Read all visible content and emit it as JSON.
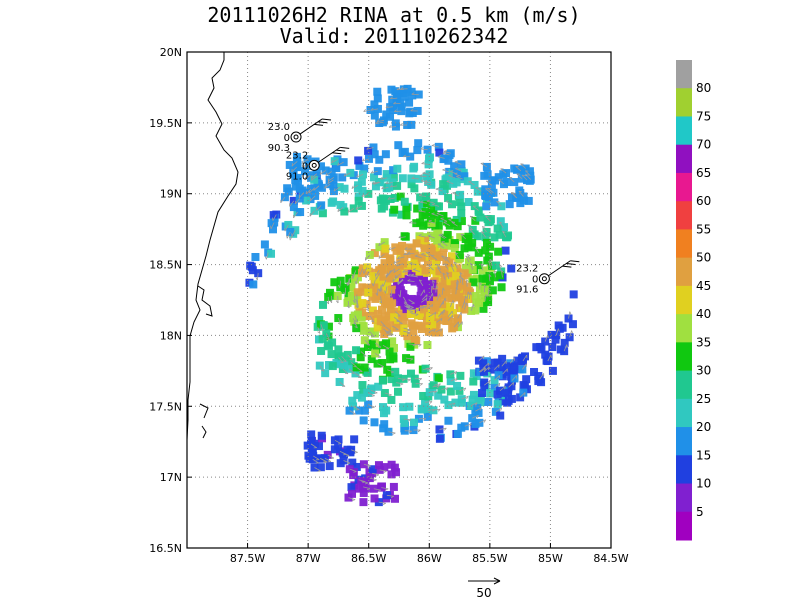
{
  "title": {
    "line1": "20111026H2 RINA at 0.5 km (m/s)",
    "line2": "Valid: 201110262342"
  },
  "map": {
    "lon_range": [
      -88.0,
      -84.5
    ],
    "lat_range": [
      16.5,
      20.0
    ],
    "lon_ticks": [
      {
        "value": -87.5,
        "label": "87.5W"
      },
      {
        "value": -87.0,
        "label": "87W"
      },
      {
        "value": -86.5,
        "label": "86.5W"
      },
      {
        "value": -86.0,
        "label": "86W"
      },
      {
        "value": -85.5,
        "label": "85.5W"
      },
      {
        "value": -85.0,
        "label": "85W"
      },
      {
        "value": -84.5,
        "label": "84.5W"
      }
    ],
    "lat_ticks": [
      {
        "value": 20.0,
        "label": "20N"
      },
      {
        "value": 19.5,
        "label": "19.5N"
      },
      {
        "value": 19.0,
        "label": "19N"
      },
      {
        "value": 18.5,
        "label": "18.5N"
      },
      {
        "value": 18.0,
        "label": "18N"
      },
      {
        "value": 17.5,
        "label": "17.5N"
      },
      {
        "value": 17.0,
        "label": "17N"
      },
      {
        "value": 16.5,
        "label": "16.5N"
      }
    ],
    "grid": "dotted"
  },
  "colorbar": {
    "levels": [
      {
        "label": "",
        "color": "#a0a0a0"
      },
      {
        "label": "80",
        "color": "#a0d030"
      },
      {
        "label": "75",
        "color": "#20c8c8"
      },
      {
        "label": "70",
        "color": "#9010c0"
      },
      {
        "label": "65",
        "color": "#e81890"
      },
      {
        "label": "60",
        "color": "#f04040"
      },
      {
        "label": "55",
        "color": "#f08020"
      },
      {
        "label": "50",
        "color": "#e0a040"
      },
      {
        "label": "45",
        "color": "#e0d020"
      },
      {
        "label": "40",
        "color": "#a0e040"
      },
      {
        "label": "35",
        "color": "#10c810"
      },
      {
        "label": "30",
        "color": "#20c890"
      },
      {
        "label": "25",
        "color": "#30c8c0"
      },
      {
        "label": "20",
        "color": "#2090e8"
      },
      {
        "label": "15",
        "color": "#2040e0"
      },
      {
        "label": "10",
        "color": "#8020d0"
      },
      {
        "label": "5",
        "color": "#a000c0"
      }
    ]
  },
  "stations": [
    {
      "lat": 19.4,
      "lon": -87.1,
      "top": "23.0",
      "mid": "0",
      "bottom": "90.3"
    },
    {
      "lat": 19.2,
      "lon": -86.95,
      "top": "23.2",
      "mid": "0",
      "bottom": "91.0"
    },
    {
      "lat": 18.4,
      "lon": -85.05,
      "top": "23.2",
      "mid": "0",
      "bottom": "91.6"
    }
  ],
  "reference_vector": {
    "label": "50"
  }
}
